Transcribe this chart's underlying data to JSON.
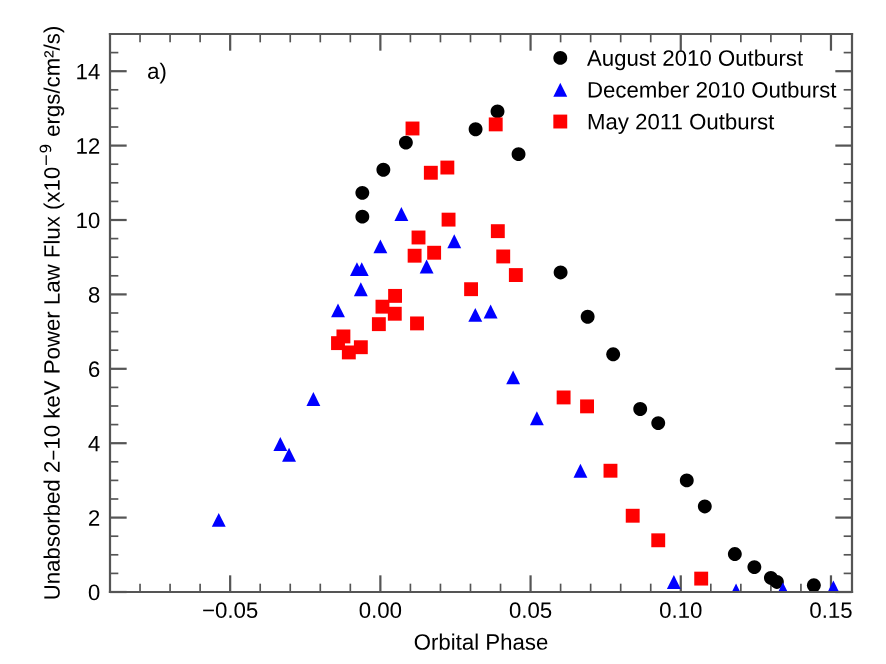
{
  "chart_data": {
    "type": "scatter",
    "xlabel": "Orbital Phase",
    "ylabel": "Unabsorbed 2–10 keV Power Law Flux (x10$^{−9}$ ergs/cm²/s)",
    "annotations": [
      "a)"
    ],
    "xlim": [
      -0.09,
      0.157
    ],
    "ylim": [
      0,
      15
    ],
    "xticks": [
      {
        "value": -0.05,
        "label": "−0.05"
      },
      {
        "value": 0,
        "label": "0.00"
      },
      {
        "value": 0.05,
        "label": "0.05"
      },
      {
        "value": 0.1,
        "label": "0.10"
      },
      {
        "value": 0.15,
        "label": "0.15"
      }
    ],
    "yticks": [
      0,
      2,
      4,
      6,
      8,
      10,
      12,
      14
    ],
    "grid": false,
    "legend": "top right",
    "series": [
      {
        "name": "August 2010 Outburst",
        "color": "#000000",
        "marker": "circle",
        "x": [
          -0.006,
          -0.006,
          0.001,
          0.0085,
          0.0317,
          0.039,
          0.046,
          0.06,
          0.069,
          0.0775,
          0.0865,
          0.0925,
          0.102,
          0.108,
          0.118,
          0.1245,
          0.13,
          0.132,
          0.1443
        ],
        "values": [
          10.73,
          10.09,
          11.35,
          12.08,
          12.44,
          12.92,
          11.77,
          8.59,
          7.4,
          6.39,
          4.92,
          4.54,
          3.0,
          2.3,
          1.02,
          0.67,
          0.38,
          0.27,
          0.18
        ]
      },
      {
        "name": "December 2010 Outburst",
        "color": "#0000ff",
        "marker": "triangle",
        "x": [
          -0.0538,
          -0.0333,
          -0.0304,
          -0.0223,
          -0.0141,
          -0.0078,
          -0.0062,
          -0.0065,
          0.0,
          0.007,
          0.0154,
          0.0246,
          0.0316,
          0.0367,
          0.0442,
          0.0521,
          0.0666,
          0.0977,
          0.1184,
          0.134,
          0.1508
        ],
        "values": [
          1.94,
          3.98,
          3.69,
          5.19,
          7.57,
          8.68,
          8.68,
          8.14,
          9.29,
          10.16,
          8.75,
          9.43,
          7.45,
          7.54,
          5.77,
          4.67,
          3.26,
          0.27,
          0.04,
          0.07,
          0.12
        ]
      },
      {
        "name": "May 2011 Outburst",
        "color": "#ff0000",
        "marker": "square",
        "x": [
          -0.0141,
          -0.0123,
          -0.0105,
          -0.0065,
          -0.0005,
          0.0007,
          0.0048,
          0.0049,
          0.0122,
          0.0107,
          0.0114,
          0.0127,
          0.0168,
          0.0179,
          0.0223,
          0.0227,
          0.0302,
          0.0384,
          0.0391,
          0.0409,
          0.0451,
          0.061,
          0.0688,
          0.0766,
          0.084,
          0.0925,
          0.1068
        ],
        "values": [
          6.69,
          6.87,
          6.44,
          6.58,
          7.2,
          7.67,
          7.48,
          7.96,
          7.22,
          12.46,
          9.04,
          9.53,
          11.27,
          9.12,
          11.41,
          10.01,
          8.14,
          12.57,
          9.7,
          9.02,
          8.52,
          5.23,
          4.99,
          3.26,
          2.05,
          1.39,
          0.36
        ]
      }
    ]
  }
}
